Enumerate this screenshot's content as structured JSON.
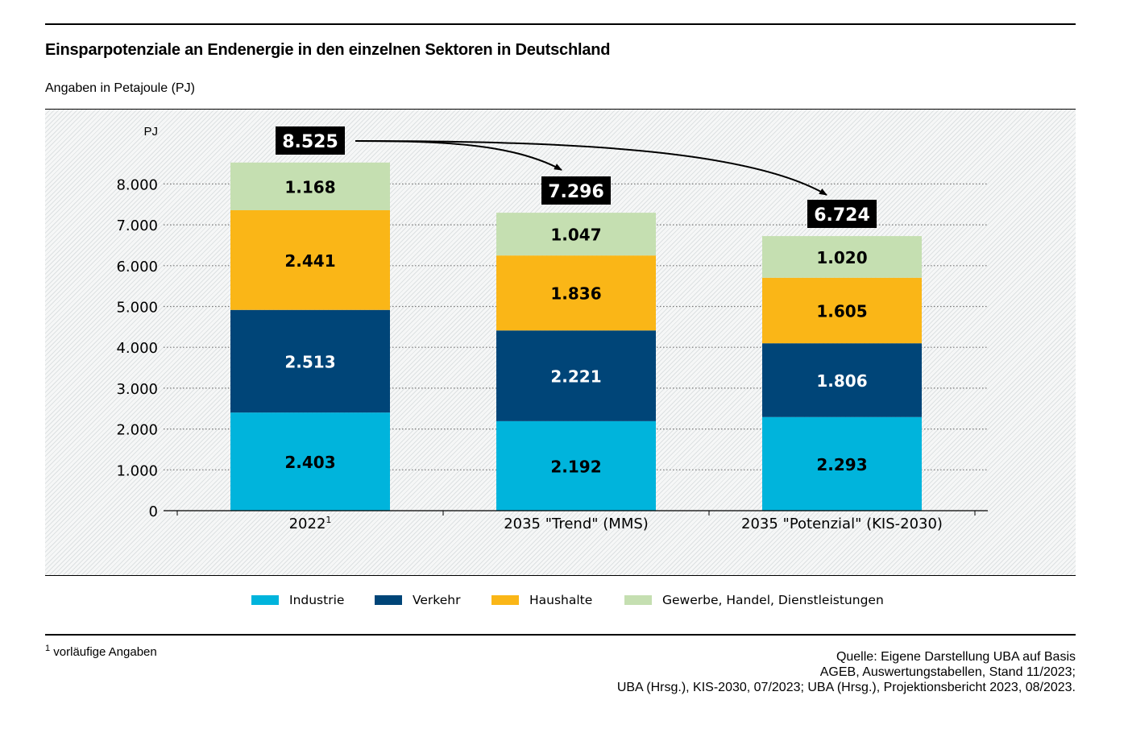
{
  "header": {
    "title": "Einsparpotenziale an Endenergie in den einzelnen Sektoren in Deutschland",
    "subtitle": "Angaben in Petajoule (PJ)"
  },
  "chart_data": {
    "type": "bar",
    "stacked": true,
    "title": "Einsparpotenziale an Endenergie in den einzelnen Sektoren in Deutschland",
    "subtitle": "Angaben in Petajoule (PJ)",
    "ylabel": "PJ",
    "xlabel": "",
    "ylim": [
      0,
      8000
    ],
    "yticks": [
      0,
      1000,
      2000,
      3000,
      4000,
      5000,
      6000,
      7000,
      8000
    ],
    "ytick_labels": [
      "0",
      "1.000",
      "2.000",
      "3.000",
      "4.000",
      "5.000",
      "6.000",
      "7.000",
      "8.000"
    ],
    "grid": true,
    "categories": [
      "2022",
      "2035 \"Trend\" (MMS)",
      "2035 \"Potenzial\" (KIS-2030)"
    ],
    "category_superscripts": [
      "1",
      "",
      ""
    ],
    "series": [
      {
        "name": "Industrie",
        "color": "#00b4dc",
        "label_color": "#000000",
        "values": [
          2403,
          2192,
          2293
        ],
        "labels": [
          "2.403",
          "2.192",
          "2.293"
        ]
      },
      {
        "name": "Verkehr",
        "color": "#004578",
        "label_color": "#ffffff",
        "values": [
          2513,
          2221,
          1806
        ],
        "labels": [
          "2.513",
          "2.221",
          "1.806"
        ]
      },
      {
        "name": "Haushalte",
        "color": "#fab617",
        "label_color": "#000000",
        "values": [
          2441,
          1836,
          1605
        ],
        "labels": [
          "2.441",
          "1.836",
          "1.605"
        ]
      },
      {
        "name": "Gewerbe, Handel, Dienstleistungen",
        "color": "#c5dfb1",
        "label_color": "#000000",
        "values": [
          1168,
          1047,
          1020
        ],
        "labels": [
          "1.168",
          "1.047",
          "1.020"
        ]
      }
    ],
    "totals": [
      8525,
      7296,
      6724
    ],
    "total_labels": [
      "8.525",
      "7.296",
      "6.724"
    ],
    "annotations": [
      {
        "type": "arrow",
        "from": "2022",
        "to": "2035 \"Trend\" (MMS)"
      },
      {
        "type": "arrow",
        "from": "2022",
        "to": "2035 \"Potenzial\" (KIS-2030)"
      }
    ],
    "legend": {
      "placement": "bottom",
      "entries": [
        "Industrie",
        "Verkehr",
        "Haushalte",
        "Gewerbe, Handel, Dienstleistungen"
      ]
    }
  },
  "footer": {
    "footnote_marker": "1",
    "footnote_text": "vorläufige Angaben",
    "source_lines": [
      "Quelle: Eigene Darstellung UBA auf Basis",
      "AGEB, Auswertungstabellen,  Stand 11/2023;",
      "UBA (Hrsg.), KIS-2030, 07/2023; UBA (Hrsg.), Projektionsbericht 2023, 08/2023."
    ]
  }
}
